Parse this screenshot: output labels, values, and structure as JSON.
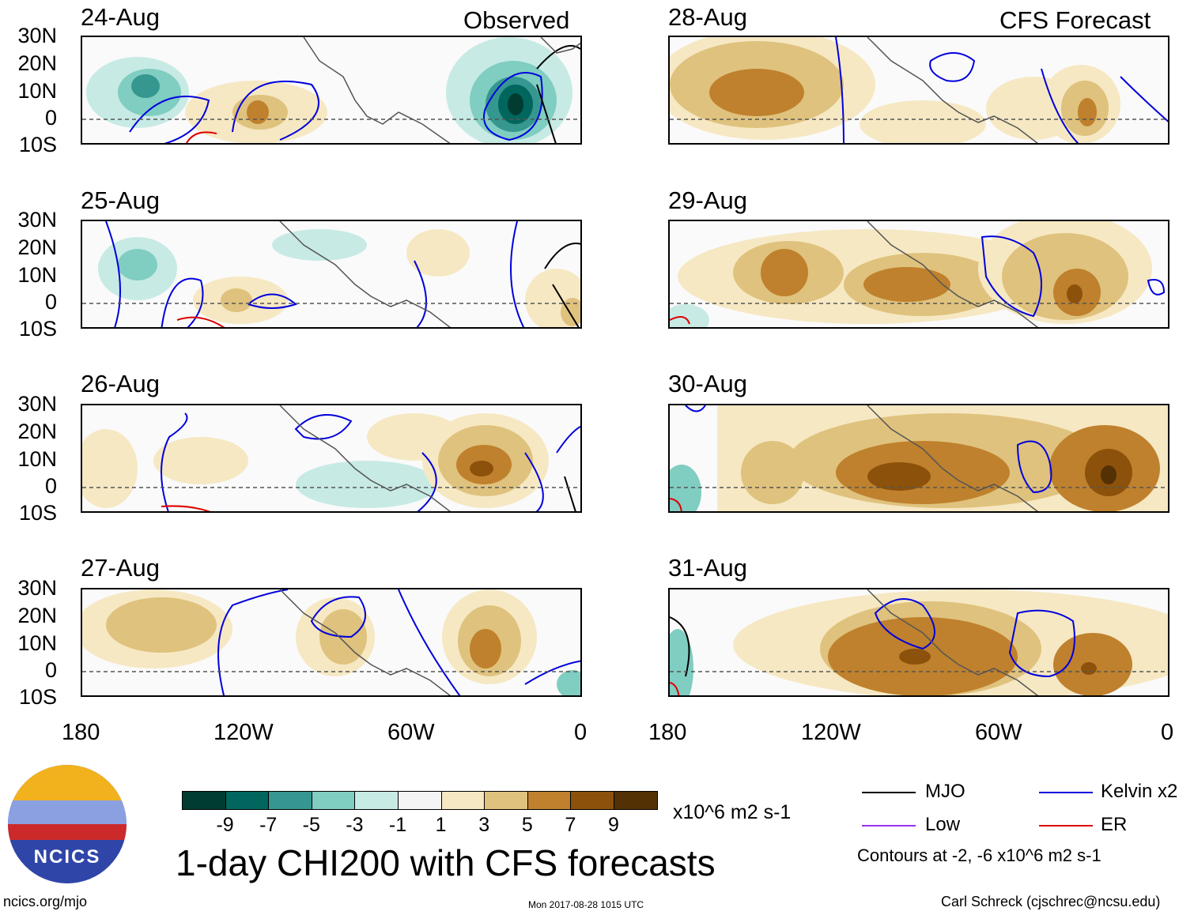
{
  "observed_label": "Observed",
  "forecast_label": "CFS Forecast",
  "panels_left": [
    {
      "date": "24-Aug"
    },
    {
      "date": "25-Aug"
    },
    {
      "date": "26-Aug"
    },
    {
      "date": "27-Aug"
    }
  ],
  "panels_right": [
    {
      "date": "28-Aug"
    },
    {
      "date": "29-Aug"
    },
    {
      "date": "30-Aug"
    },
    {
      "date": "31-Aug"
    }
  ],
  "lat_labels": [
    "30N",
    "20N",
    "10N",
    "0",
    "10S"
  ],
  "lon_labels": [
    "180",
    "120W",
    "60W",
    "0"
  ],
  "colorbar": {
    "colors": [
      "#003c30",
      "#01665e",
      "#35978f",
      "#80cdc1",
      "#c7eae5",
      "#f5f5f5",
      "#f6e8c3",
      "#dfc27d",
      "#bf812d",
      "#8c510a",
      "#543005"
    ],
    "labels": [
      "-9",
      "-7",
      "-5",
      "-3",
      "-1",
      "1",
      "3",
      "5",
      "7",
      "9"
    ],
    "units": "x10^6 m2 s-1"
  },
  "main_title": "1-day CHI200 with CFS forecasts",
  "legend": {
    "items": [
      {
        "label": "MJO",
        "color": "#000000"
      },
      {
        "label": "Kelvin x2",
        "color": "#0000dd"
      },
      {
        "label": "Low",
        "color": "#9933ee"
      },
      {
        "label": "ER",
        "color": "#dd0000"
      }
    ],
    "note": "Contours at -2, -6 x10^6 m2 s-1"
  },
  "logo_text": "NCICS",
  "footer": {
    "url": "ncics.org/mjo",
    "timestamp": "Mon 2017-08-28 1015 UTC",
    "author": "Carl Schreck (cjschrec@ncsu.edu)"
  }
}
